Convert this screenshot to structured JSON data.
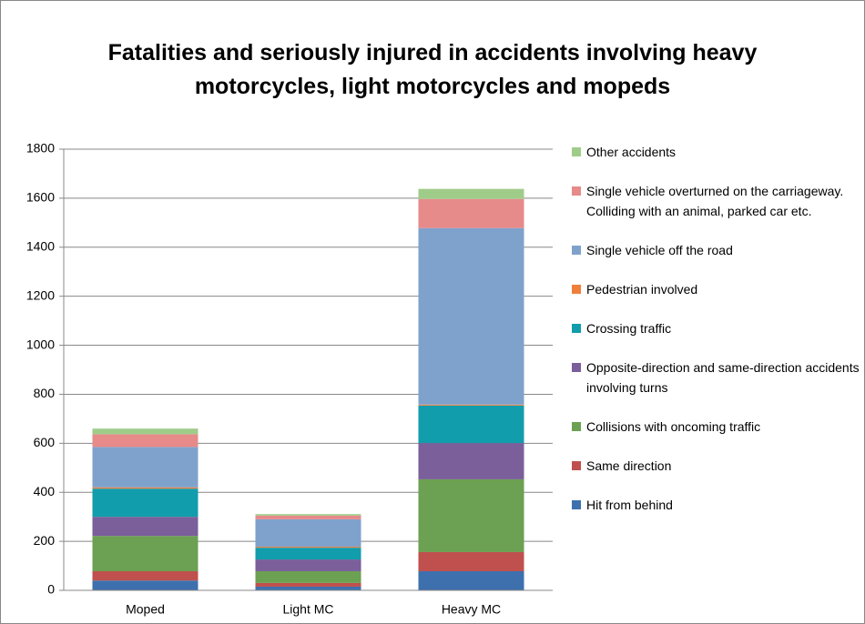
{
  "chart_data": {
    "type": "stacked-bar",
    "title": "Fatalities and seriously injured in accidents involving heavy motorcycles, light motorcycles and mopeds",
    "categories": [
      "Moped",
      "Light MC",
      "Heavy MC"
    ],
    "series": [
      {
        "name": "Hit from behind",
        "color": "#3e70ae",
        "values": [
          40,
          15,
          78
        ]
      },
      {
        "name": "Same direction",
        "color": "#c0504d",
        "values": [
          38,
          15,
          78
        ]
      },
      {
        "name": "Collisions with oncoming traffic",
        "color": "#6ca052",
        "values": [
          144,
          48,
          297
        ]
      },
      {
        "name": "Opposite-direction and same-direction accidents involving turns",
        "color": "#7a5f9b",
        "values": [
          78,
          48,
          148
        ]
      },
      {
        "name": "Crossing traffic",
        "color": "#129dac",
        "values": [
          115,
          48,
          153
        ]
      },
      {
        "name": "Pedestrian involved",
        "color": "#f07f3c",
        "values": [
          5,
          4,
          4
        ]
      },
      {
        "name": "Single vehicle off the road",
        "color": "#7fa2cc",
        "values": [
          165,
          112,
          720
        ]
      },
      {
        "name": "Single vehicle overturned on the carriageway. Colliding with an animal, parked car etc.",
        "color": "#e68a8a",
        "values": [
          52,
          15,
          119
        ]
      },
      {
        "name": "Other accidents",
        "color": "#a0cc8a",
        "values": [
          23,
          6,
          41
        ]
      }
    ],
    "ylim": [
      0,
      1800
    ],
    "yticks": [
      0,
      200,
      400,
      600,
      800,
      1000,
      1200,
      1400,
      1600,
      1800
    ],
    "grid": true,
    "legend": "right"
  }
}
